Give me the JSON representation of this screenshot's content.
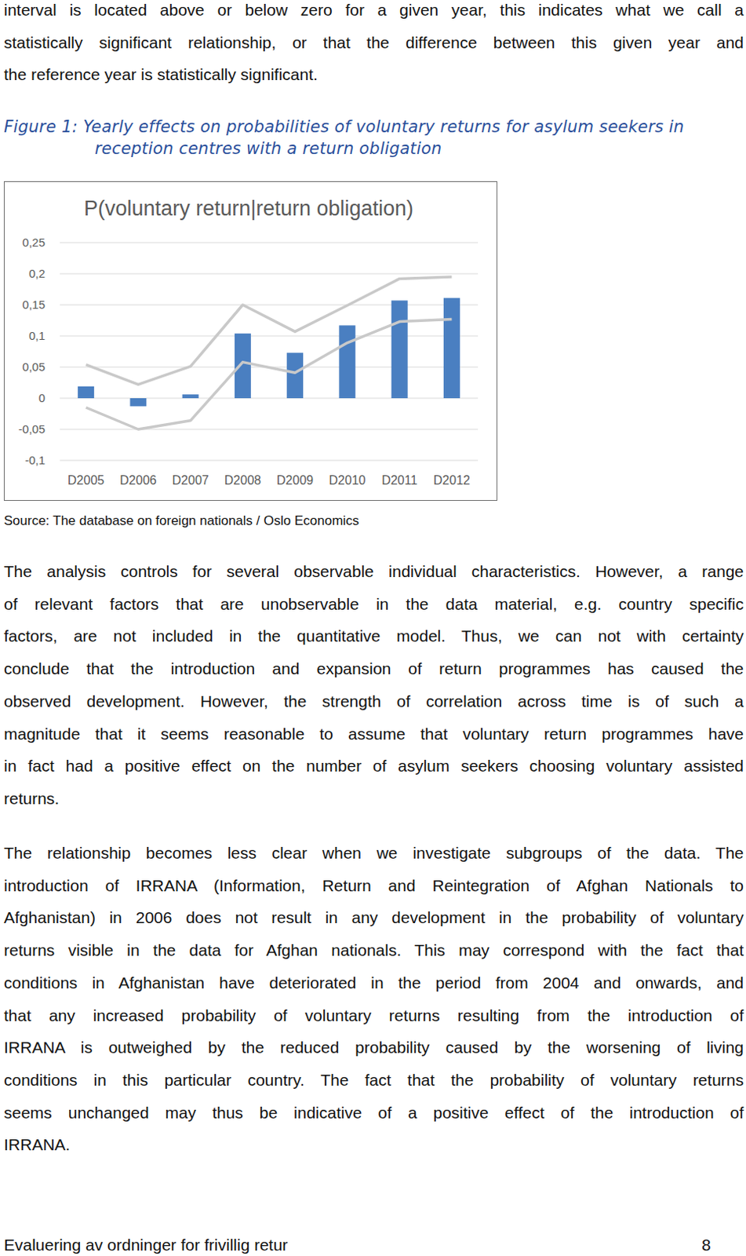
{
  "document": {
    "intro": [
      "interval is located above or below zero for a given year, this indicates what we call a",
      "statistically significant relationship, or that the difference between this given year and",
      "the reference year is statistically significant."
    ],
    "caption": [
      "Figure 1: Yearly effects on probabilities of voluntary returns for asylum seekers in",
      "reception centres with a return obligation"
    ],
    "source": "Source: The database on foreign nationals / Oslo Economics",
    "body": [
      [
        "The analysis controls for several observable individual characteristics. However, a range",
        "of relevant factors that are unobservable in the data material, e.g. country specific",
        "factors, are not included in the quantitative model. Thus, we can not with certainty",
        "conclude that the introduction and expansion of return programmes has caused the",
        "observed development. However, the strength of correlation across time is of such a",
        "magnitude that it seems reasonable to assume that voluntary return programmes have",
        "in fact had a positive effect on the number of asylum seekers choosing voluntary assisted",
        "returns."
      ],
      [
        "The relationship becomes less clear when we investigate subgroups of the data. The",
        "introduction of IRRANA (Information, Return and Reintegration of Afghan Nationals to",
        "Afghanistan) in 2006 does not result in any development in the probability of voluntary",
        "returns visible in the data for Afghan nationals. This may correspond with the fact that",
        "conditions in Afghanistan have deteriorated in the period from 2004 and onwards, and",
        "that any increased probability of voluntary returns resulting from the introduction of",
        "IRRANA is outweighed by the reduced probability caused by the worsening of living",
        "conditions in this particular country. The fact that the probability of voluntary returns",
        "seems unchanged may thus be indicative of a positive effect of the introduction of",
        "IRRANA."
      ]
    ],
    "footer": {
      "title": "Evaluering av ordninger for frivillig retur",
      "page": 8
    }
  },
  "chart_data": {
    "type": "bar",
    "title": "P(voluntary return|return obligation)",
    "categories": [
      "D2005",
      "D2006",
      "D2007",
      "D2008",
      "D2009",
      "D2010",
      "D2011",
      "D2012"
    ],
    "series": [
      {
        "type": "bar",
        "color": "#4a7fc1",
        "values": [
          0.019,
          -0.013,
          0.006,
          0.104,
          0.073,
          0.117,
          0.157,
          0.161
        ]
      },
      {
        "type": "line",
        "color": "#c9c9c9",
        "values": [
          0.054,
          0.022,
          0.051,
          0.15,
          0.107,
          0.149,
          0.192,
          0.195
        ]
      },
      {
        "type": "line",
        "color": "#c9c9c9",
        "values": [
          -0.015,
          -0.05,
          -0.036,
          0.058,
          0.041,
          0.089,
          0.123,
          0.127
        ]
      }
    ],
    "ylim": [
      -0.1,
      0.25
    ],
    "yticks": [
      {
        "value": -0.1,
        "label": "-0,1"
      },
      {
        "value": -0.05,
        "label": "-0,05"
      },
      0,
      {
        "value": 0.05,
        "label": "0,05"
      },
      {
        "value": 0.1,
        "label": "0,1"
      },
      {
        "value": 0.15,
        "label": "0,15"
      },
      {
        "value": 0.2,
        "label": "0,2"
      },
      {
        "value": 0.25,
        "label": "0,25"
      }
    ],
    "grid": true
  }
}
